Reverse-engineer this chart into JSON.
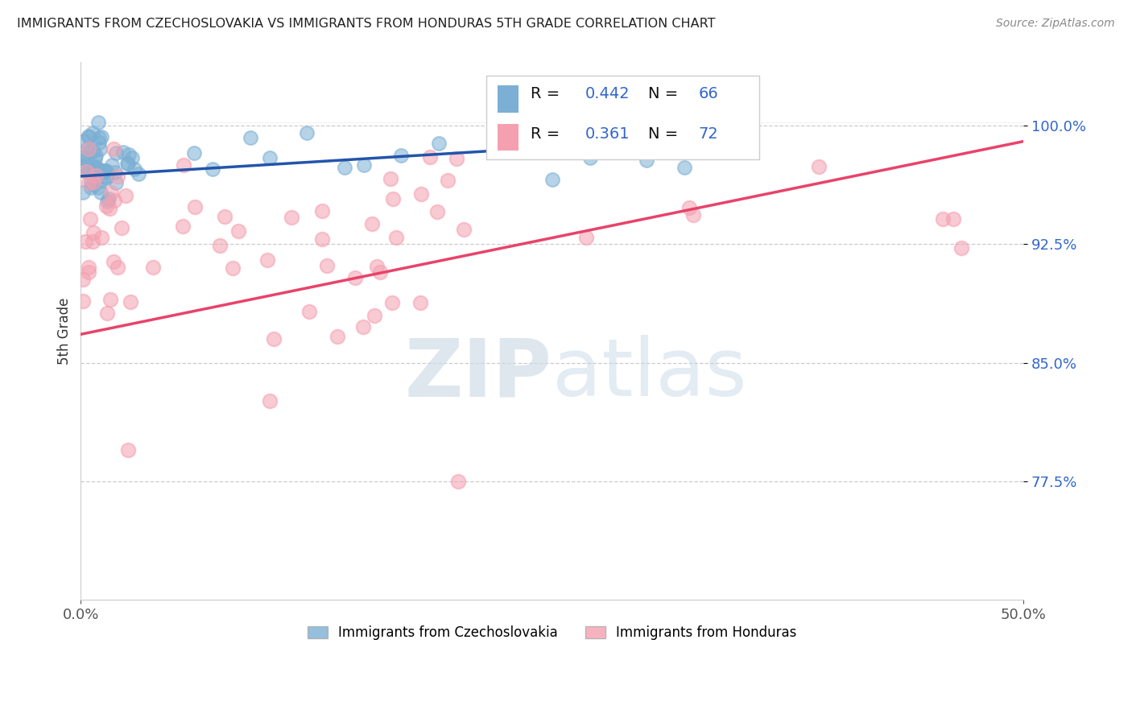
{
  "title": "IMMIGRANTS FROM CZECHOSLOVAKIA VS IMMIGRANTS FROM HONDURAS 5TH GRADE CORRELATION CHART",
  "source": "Source: ZipAtlas.com",
  "ylabel": "5th Grade",
  "legend_label_blue": "Immigrants from Czechoslovakia",
  "legend_label_pink": "Immigrants from Honduras",
  "blue_color": "#7bafd4",
  "pink_color": "#f4a0b0",
  "blue_line_color": "#2255aa",
  "pink_line_color": "#e8436a",
  "xmin": 0.0,
  "xmax": 0.5,
  "ymin": 0.7,
  "ymax": 1.04,
  "yticks": [
    0.775,
    0.85,
    0.925,
    1.0
  ],
  "ytick_labels": [
    "77.5%",
    "85.0%",
    "92.5%",
    "100.0%"
  ],
  "xtick_labels": [
    "0.0%",
    "50.0%"
  ],
  "watermark_zip": "ZIP",
  "watermark_atlas": "atlas",
  "background_color": "#ffffff"
}
